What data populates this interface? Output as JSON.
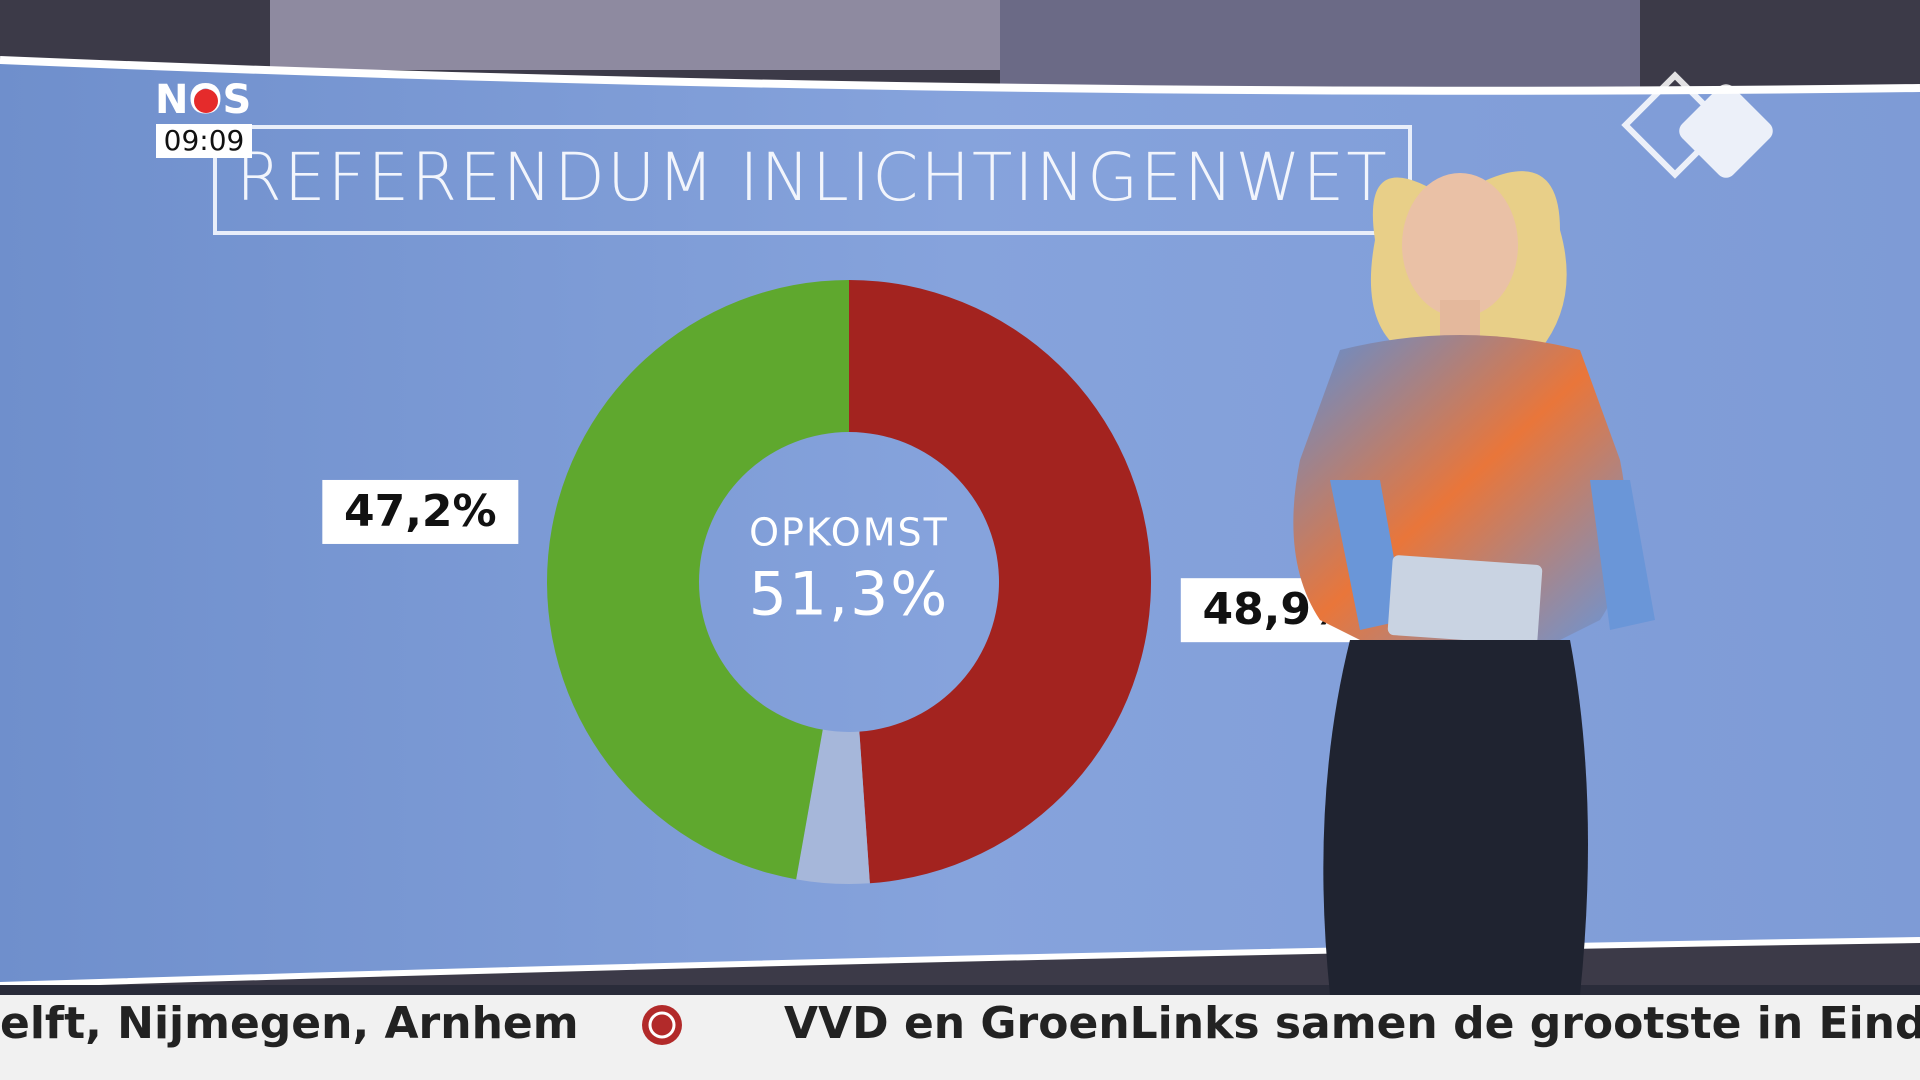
{
  "channel": {
    "logo": "NOS",
    "time": "09:09"
  },
  "chart_data": {
    "type": "pie",
    "title": "REFERENDUM INLICHTINGENWET",
    "values": [
      48.9,
      3.9,
      47.2
    ],
    "value_labels": [
      "48,9%",
      null,
      "47,2%"
    ],
    "colors": [
      "#a3231f",
      "#a6b7da",
      "#5fa82e"
    ],
    "donut": true,
    "annotations": [
      "OPKOMST",
      "51,3%"
    ]
  },
  "ticker": [
    "elft, Nijmegen, Arnhem",
    "VVD en GroenLinks samen de grootste in Eindho"
  ]
}
